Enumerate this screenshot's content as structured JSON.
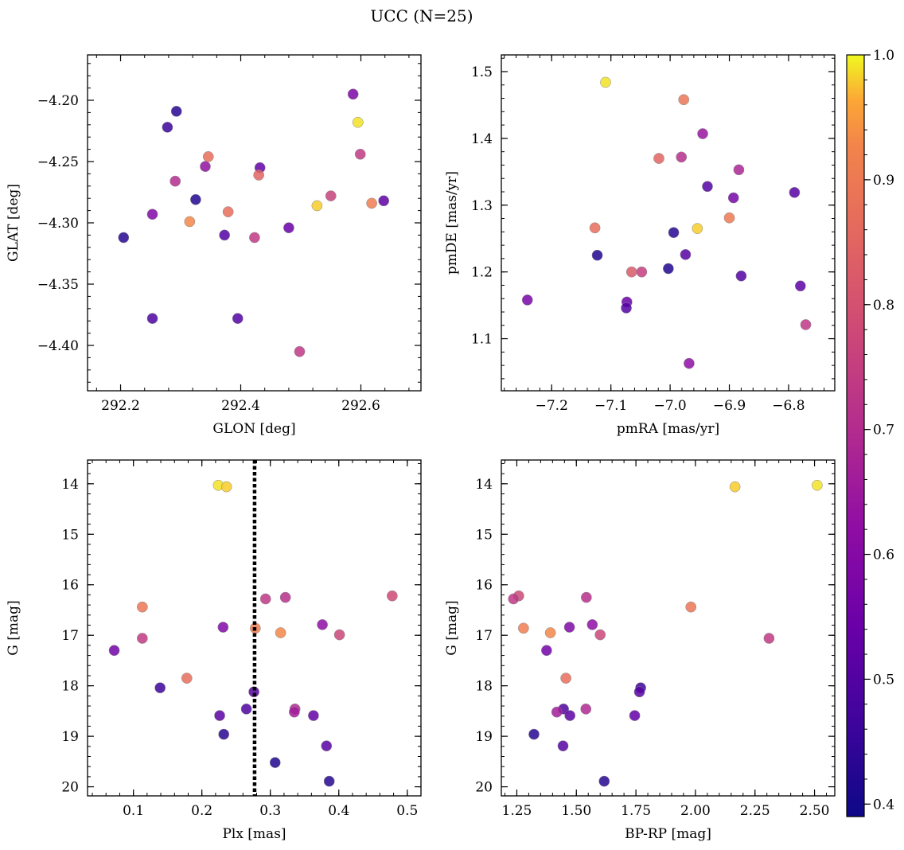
{
  "figure": {
    "title": "UCC (N=25)",
    "colormap": "plasma",
    "colors": {
      "axes": "#000000",
      "vline": "#000000",
      "marker_edge": "#888888"
    },
    "colorbar": {
      "ticks": [
        0.4,
        0.5,
        0.6,
        0.7,
        0.8,
        0.9,
        1.0
      ],
      "range": [
        0.39,
        1.0
      ]
    }
  },
  "chart_data": [
    {
      "type": "scatter",
      "xlabel": "GLON [deg]",
      "ylabel": "GLAT [deg]",
      "xlim": [
        292.145,
        292.7
      ],
      "ylim": [
        -4.437,
        -4.163
      ],
      "xticks": [
        292.2,
        292.4,
        292.6
      ],
      "yticks": [
        -4.4,
        -4.35,
        -4.3,
        -4.25,
        -4.2
      ],
      "xticklabels": [
        "292.2",
        "292.4",
        "292.6"
      ],
      "yticklabels": [
        "−4.40",
        "−4.35",
        "−4.30",
        "−4.25",
        "−4.20"
      ],
      "invert_y": false,
      "points": [
        {
          "x": 292.587,
          "y": -4.195,
          "c": 0.58
        },
        {
          "x": 292.595,
          "y": -4.218,
          "c": 0.99
        },
        {
          "x": 292.293,
          "y": -4.209,
          "c": 0.43
        },
        {
          "x": 292.278,
          "y": -4.222,
          "c": 0.46
        },
        {
          "x": 292.599,
          "y": -4.244,
          "c": 0.74
        },
        {
          "x": 292.346,
          "y": -4.246,
          "c": 0.87
        },
        {
          "x": 292.432,
          "y": -4.255,
          "c": 0.53
        },
        {
          "x": 292.341,
          "y": -4.254,
          "c": 0.63
        },
        {
          "x": 292.43,
          "y": -4.261,
          "c": 0.85
        },
        {
          "x": 292.291,
          "y": -4.266,
          "c": 0.7
        },
        {
          "x": 292.325,
          "y": -4.281,
          "c": 0.42
        },
        {
          "x": 292.55,
          "y": -4.278,
          "c": 0.76
        },
        {
          "x": 292.618,
          "y": -4.284,
          "c": 0.91
        },
        {
          "x": 292.638,
          "y": -4.282,
          "c": 0.52
        },
        {
          "x": 292.527,
          "y": -4.286,
          "c": 0.98
        },
        {
          "x": 292.253,
          "y": -4.293,
          "c": 0.59
        },
        {
          "x": 292.379,
          "y": -4.291,
          "c": 0.87
        },
        {
          "x": 292.315,
          "y": -4.299,
          "c": 0.93
        },
        {
          "x": 292.48,
          "y": -4.304,
          "c": 0.54
        },
        {
          "x": 292.373,
          "y": -4.31,
          "c": 0.5
        },
        {
          "x": 292.423,
          "y": -4.312,
          "c": 0.74
        },
        {
          "x": 292.205,
          "y": -4.312,
          "c": 0.43
        },
        {
          "x": 292.253,
          "y": -4.378,
          "c": 0.49
        },
        {
          "x": 292.395,
          "y": -4.378,
          "c": 0.5
        },
        {
          "x": 292.498,
          "y": -4.405,
          "c": 0.73
        }
      ]
    },
    {
      "type": "scatter",
      "xlabel": "pmRA [mas/yr]",
      "ylabel": "pmDE [mas/yr]",
      "xlim": [
        -7.285,
        -6.722
      ],
      "ylim": [
        1.022,
        1.525
      ],
      "xticks": [
        -7.2,
        -7.1,
        -7.0,
        -6.9,
        -6.8
      ],
      "yticks": [
        1.1,
        1.2,
        1.3,
        1.4,
        1.5
      ],
      "xticklabels": [
        "−7.2",
        "−7.1",
        "−7.0",
        "−6.9",
        "−6.8"
      ],
      "yticklabels": [
        "1.1",
        "1.2",
        "1.3",
        "1.4",
        "1.5"
      ],
      "invert_y": false,
      "points": [
        {
          "x": -7.109,
          "y": 1.484,
          "c": 0.99
        },
        {
          "x": -6.977,
          "y": 1.458,
          "c": 0.89
        },
        {
          "x": -6.945,
          "y": 1.407,
          "c": 0.64
        },
        {
          "x": -7.019,
          "y": 1.37,
          "c": 0.85
        },
        {
          "x": -6.981,
          "y": 1.372,
          "c": 0.71
        },
        {
          "x": -6.884,
          "y": 1.353,
          "c": 0.68
        },
        {
          "x": -6.937,
          "y": 1.328,
          "c": 0.5
        },
        {
          "x": -6.79,
          "y": 1.319,
          "c": 0.51
        },
        {
          "x": -6.893,
          "y": 1.311,
          "c": 0.57
        },
        {
          "x": -6.9,
          "y": 1.281,
          "c": 0.9
        },
        {
          "x": -7.127,
          "y": 1.266,
          "c": 0.87
        },
        {
          "x": -6.954,
          "y": 1.265,
          "c": 0.98
        },
        {
          "x": -6.994,
          "y": 1.259,
          "c": 0.43
        },
        {
          "x": -7.123,
          "y": 1.225,
          "c": 0.42
        },
        {
          "x": -6.974,
          "y": 1.226,
          "c": 0.51
        },
        {
          "x": -7.003,
          "y": 1.205,
          "c": 0.42
        },
        {
          "x": -7.065,
          "y": 1.2,
          "c": 0.82
        },
        {
          "x": -7.048,
          "y": 1.2,
          "c": 0.75
        },
        {
          "x": -6.88,
          "y": 1.194,
          "c": 0.5
        },
        {
          "x": -6.78,
          "y": 1.179,
          "c": 0.52
        },
        {
          "x": -7.241,
          "y": 1.158,
          "c": 0.57
        },
        {
          "x": -7.073,
          "y": 1.155,
          "c": 0.54
        },
        {
          "x": -7.074,
          "y": 1.146,
          "c": 0.5
        },
        {
          "x": -6.771,
          "y": 1.121,
          "c": 0.73
        },
        {
          "x": -6.968,
          "y": 1.063,
          "c": 0.62
        }
      ]
    },
    {
      "type": "scatter",
      "xlabel": "Plx [mas]",
      "ylabel": "G [mag]",
      "xlim": [
        0.033,
        0.52
      ],
      "ylim": [
        20.18,
        13.53
      ],
      "xticks": [
        0.1,
        0.2,
        0.3,
        0.4,
        0.5
      ],
      "yticks": [
        14,
        15,
        16,
        17,
        18,
        19,
        20
      ],
      "xticklabels": [
        "0.1",
        "0.2",
        "0.3",
        "0.4",
        "0.5"
      ],
      "yticklabels": [
        "14",
        "15",
        "16",
        "17",
        "18",
        "19",
        "20"
      ],
      "invert_y": true,
      "vline": 0.277,
      "points": [
        {
          "x": 0.224,
          "y": 14.03,
          "c": 0.99
        },
        {
          "x": 0.236,
          "y": 14.06,
          "c": 0.98
        },
        {
          "x": 0.478,
          "y": 16.22,
          "c": 0.78
        },
        {
          "x": 0.322,
          "y": 16.25,
          "c": 0.71
        },
        {
          "x": 0.293,
          "y": 16.28,
          "c": 0.73
        },
        {
          "x": 0.113,
          "y": 16.44,
          "c": 0.89
        },
        {
          "x": 0.376,
          "y": 16.79,
          "c": 0.62
        },
        {
          "x": 0.231,
          "y": 16.84,
          "c": 0.59
        },
        {
          "x": 0.278,
          "y": 16.86,
          "c": 0.91
        },
        {
          "x": 0.315,
          "y": 16.95,
          "c": 0.93
        },
        {
          "x": 0.401,
          "y": 16.99,
          "c": 0.77
        },
        {
          "x": 0.113,
          "y": 17.06,
          "c": 0.74
        },
        {
          "x": 0.072,
          "y": 17.3,
          "c": 0.56
        },
        {
          "x": 0.178,
          "y": 17.85,
          "c": 0.87
        },
        {
          "x": 0.139,
          "y": 18.04,
          "c": 0.46
        },
        {
          "x": 0.276,
          "y": 18.12,
          "c": 0.51
        },
        {
          "x": 0.265,
          "y": 18.46,
          "c": 0.49
        },
        {
          "x": 0.336,
          "y": 18.46,
          "c": 0.69
        },
        {
          "x": 0.335,
          "y": 18.52,
          "c": 0.66
        },
        {
          "x": 0.226,
          "y": 18.59,
          "c": 0.52
        },
        {
          "x": 0.363,
          "y": 18.59,
          "c": 0.53
        },
        {
          "x": 0.232,
          "y": 18.96,
          "c": 0.43
        },
        {
          "x": 0.382,
          "y": 19.19,
          "c": 0.51
        },
        {
          "x": 0.307,
          "y": 19.52,
          "c": 0.42
        },
        {
          "x": 0.386,
          "y": 19.89,
          "c": 0.43
        }
      ]
    },
    {
      "type": "scatter",
      "xlabel": "BP-RP [mag]",
      "ylabel": "G [mag]",
      "xlim": [
        1.185,
        2.585
      ],
      "ylim": [
        20.18,
        13.53
      ],
      "xticks": [
        1.25,
        1.5,
        1.75,
        2.0,
        2.25,
        2.5
      ],
      "yticks": [
        14,
        15,
        16,
        17,
        18,
        19,
        20
      ],
      "xticklabels": [
        "1.25",
        "1.50",
        "1.75",
        "2.00",
        "2.25",
        "2.50"
      ],
      "yticklabels": [
        "14",
        "15",
        "16",
        "17",
        "18",
        "19",
        "20"
      ],
      "invert_y": true,
      "points": [
        {
          "x": 2.511,
          "y": 14.03,
          "c": 0.99
        },
        {
          "x": 2.166,
          "y": 14.06,
          "c": 0.98
        },
        {
          "x": 1.258,
          "y": 16.22,
          "c": 0.78
        },
        {
          "x": 1.236,
          "y": 16.28,
          "c": 0.73
        },
        {
          "x": 1.542,
          "y": 16.25,
          "c": 0.71
        },
        {
          "x": 1.981,
          "y": 16.44,
          "c": 0.89
        },
        {
          "x": 1.567,
          "y": 16.79,
          "c": 0.62
        },
        {
          "x": 1.471,
          "y": 16.84,
          "c": 0.59
        },
        {
          "x": 1.278,
          "y": 16.86,
          "c": 0.91
        },
        {
          "x": 1.391,
          "y": 16.95,
          "c": 0.93
        },
        {
          "x": 1.6,
          "y": 16.99,
          "c": 0.77
        },
        {
          "x": 2.309,
          "y": 17.06,
          "c": 0.74
        },
        {
          "x": 1.375,
          "y": 17.3,
          "c": 0.56
        },
        {
          "x": 1.456,
          "y": 17.85,
          "c": 0.87
        },
        {
          "x": 1.77,
          "y": 18.04,
          "c": 0.46
        },
        {
          "x": 1.765,
          "y": 18.12,
          "c": 0.51
        },
        {
          "x": 1.446,
          "y": 18.46,
          "c": 0.49
        },
        {
          "x": 1.54,
          "y": 18.46,
          "c": 0.69
        },
        {
          "x": 1.418,
          "y": 18.52,
          "c": 0.66
        },
        {
          "x": 1.473,
          "y": 18.59,
          "c": 0.52
        },
        {
          "x": 1.745,
          "y": 18.59,
          "c": 0.53
        },
        {
          "x": 1.322,
          "y": 18.96,
          "c": 0.43
        },
        {
          "x": 1.444,
          "y": 19.19,
          "c": 0.51
        },
        {
          "x": 1.617,
          "y": 19.89,
          "c": 0.43
        }
      ]
    }
  ]
}
